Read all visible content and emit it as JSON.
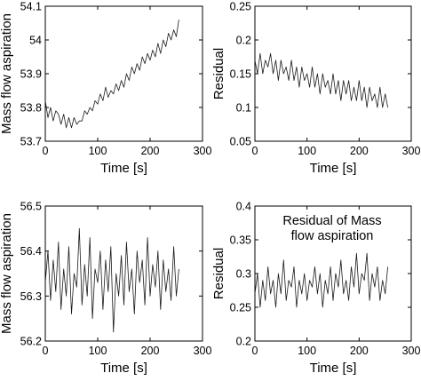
{
  "chart_data": [
    {
      "type": "line",
      "xlabel": "Time [s]",
      "ylabel": "Mass flow aspiration",
      "xlim": [
        0,
        300
      ],
      "ylim": [
        53.7,
        54.1
      ],
      "xticks": [
        "0",
        "100",
        "200",
        "300"
      ],
      "yticks": [
        "53.7",
        "53.8",
        "53.9",
        "54",
        "54.1"
      ],
      "grid": false,
      "series": [
        {
          "x": [
            0,
            5,
            10,
            15,
            20,
            25,
            30,
            35,
            40,
            45,
            50,
            55,
            60,
            65,
            70,
            75,
            80,
            85,
            90,
            95,
            100,
            105,
            110,
            115,
            120,
            125,
            130,
            135,
            140,
            145,
            150,
            155,
            160,
            165,
            170,
            175,
            180,
            185,
            190,
            195,
            200,
            205,
            210,
            215,
            220,
            225,
            230,
            235,
            240,
            245,
            250,
            255
          ],
          "values": [
            53.82,
            53.77,
            53.8,
            53.76,
            53.79,
            53.78,
            53.75,
            53.78,
            53.74,
            53.77,
            53.74,
            53.77,
            53.75,
            53.76,
            53.76,
            53.79,
            53.78,
            53.8,
            53.79,
            53.82,
            53.81,
            53.84,
            53.82,
            53.86,
            53.83,
            53.85,
            53.84,
            53.87,
            53.85,
            53.88,
            53.86,
            53.9,
            53.88,
            53.92,
            53.9,
            53.93,
            53.91,
            53.95,
            53.93,
            53.96,
            53.94,
            53.97,
            53.95,
            53.99,
            53.96,
            54.0,
            53.98,
            54.02,
            54.0,
            54.03,
            54.01,
            54.06
          ]
        }
      ]
    },
    {
      "type": "line",
      "xlabel": "Time [s]",
      "ylabel": "Residual",
      "xlim": [
        0,
        300
      ],
      "ylim": [
        0.05,
        0.25
      ],
      "xticks": [
        "0",
        "100",
        "200",
        "300"
      ],
      "yticks": [
        "0.05",
        "0.1",
        "0.15",
        "0.2",
        "0.25"
      ],
      "grid": false,
      "series": [
        {
          "x": [
            0,
            5,
            10,
            15,
            20,
            25,
            30,
            35,
            40,
            45,
            50,
            55,
            60,
            65,
            70,
            75,
            80,
            85,
            90,
            95,
            100,
            105,
            110,
            115,
            120,
            125,
            130,
            135,
            140,
            145,
            150,
            155,
            160,
            165,
            170,
            175,
            180,
            185,
            190,
            195,
            200,
            205,
            210,
            215,
            220,
            225,
            230,
            235,
            240,
            245,
            250,
            255
          ],
          "values": [
            0.17,
            0.15,
            0.18,
            0.15,
            0.17,
            0.16,
            0.18,
            0.15,
            0.17,
            0.14,
            0.17,
            0.15,
            0.16,
            0.14,
            0.17,
            0.14,
            0.16,
            0.13,
            0.16,
            0.14,
            0.15,
            0.13,
            0.16,
            0.13,
            0.15,
            0.12,
            0.15,
            0.13,
            0.14,
            0.12,
            0.15,
            0.12,
            0.14,
            0.11,
            0.14,
            0.12,
            0.14,
            0.11,
            0.13,
            0.11,
            0.14,
            0.11,
            0.13,
            0.1,
            0.13,
            0.11,
            0.12,
            0.1,
            0.13,
            0.1,
            0.12,
            0.1
          ]
        }
      ]
    },
    {
      "type": "line",
      "xlabel": "Time [s]",
      "ylabel": "Mass flow aspiration",
      "xlim": [
        0,
        300
      ],
      "ylim": [
        56.2,
        56.5
      ],
      "xticks": [
        "0",
        "100",
        "200",
        "300"
      ],
      "yticks": [
        "56.2",
        "56.3",
        "56.4",
        "56.5"
      ],
      "grid": false,
      "series": [
        {
          "x": [
            0,
            5,
            10,
            15,
            20,
            25,
            30,
            35,
            40,
            45,
            50,
            55,
            60,
            65,
            70,
            75,
            80,
            85,
            90,
            95,
            100,
            105,
            110,
            115,
            120,
            125,
            130,
            135,
            140,
            145,
            150,
            155,
            160,
            165,
            170,
            175,
            180,
            185,
            190,
            195,
            200,
            205,
            210,
            215,
            220,
            225,
            230,
            235,
            240,
            245,
            250,
            255
          ],
          "values": [
            56.33,
            56.4,
            56.29,
            56.38,
            56.31,
            56.42,
            56.27,
            56.36,
            56.3,
            56.41,
            56.26,
            56.35,
            56.32,
            56.45,
            56.28,
            56.37,
            56.3,
            56.43,
            56.25,
            56.36,
            56.33,
            56.4,
            56.27,
            56.38,
            56.31,
            56.41,
            56.22,
            56.35,
            56.3,
            56.39,
            56.28,
            56.42,
            56.31,
            56.36,
            56.26,
            56.4,
            56.33,
            56.38,
            56.28,
            56.43,
            56.3,
            56.37,
            56.32,
            56.4,
            56.27,
            56.38,
            56.31,
            56.36,
            56.29,
            56.41,
            56.3,
            56.36
          ]
        }
      ]
    },
    {
      "type": "line",
      "xlabel": "Time [s]",
      "ylabel": "Residual",
      "annotation": "Residual of Mass\nflow aspiration",
      "xlim": [
        0,
        300
      ],
      "ylim": [
        0.2,
        0.4
      ],
      "xticks": [
        "0",
        "100",
        "200",
        "300"
      ],
      "yticks": [
        "0.2",
        "0.25",
        "0.3",
        "0.35",
        "0.4"
      ],
      "grid": false,
      "series": [
        {
          "x": [
            0,
            5,
            10,
            15,
            20,
            25,
            30,
            35,
            40,
            45,
            50,
            55,
            60,
            65,
            70,
            75,
            80,
            85,
            90,
            95,
            100,
            105,
            110,
            115,
            120,
            125,
            130,
            135,
            140,
            145,
            150,
            155,
            160,
            165,
            170,
            175,
            180,
            185,
            190,
            195,
            200,
            205,
            210,
            215,
            220,
            225,
            230,
            235,
            240,
            245,
            250,
            255
          ],
          "values": [
            0.27,
            0.3,
            0.25,
            0.29,
            0.26,
            0.31,
            0.27,
            0.29,
            0.25,
            0.3,
            0.27,
            0.32,
            0.26,
            0.29,
            0.28,
            0.31,
            0.25,
            0.29,
            0.27,
            0.3,
            0.26,
            0.29,
            0.28,
            0.31,
            0.27,
            0.3,
            0.25,
            0.29,
            0.27,
            0.31,
            0.26,
            0.3,
            0.28,
            0.32,
            0.27,
            0.29,
            0.26,
            0.31,
            0.28,
            0.33,
            0.27,
            0.3,
            0.29,
            0.33,
            0.26,
            0.3,
            0.28,
            0.31,
            0.26,
            0.29,
            0.27,
            0.31
          ]
        }
      ]
    }
  ]
}
